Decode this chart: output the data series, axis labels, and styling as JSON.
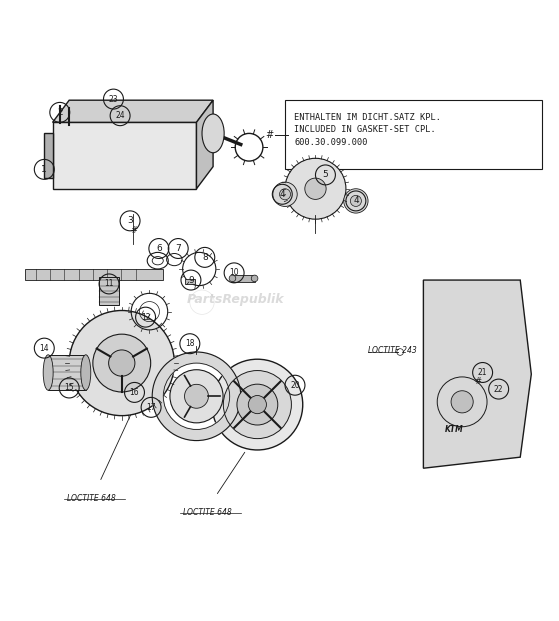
{
  "bg_color": "#ffffff",
  "line_color": "#1a1a1a",
  "fig_width": 5.59,
  "fig_height": 6.21,
  "dpi": 100,
  "box_text": "ENTHALTEN IM DICHT.SATZ KPL.\nINCLUDED IN GASKET-SET CPL.\n600.30.099.000",
  "loctite_648_1": "LOCTITE 648",
  "loctite_648_2": "LOCTITE 648",
  "loctite_243": "LOCTITE 243",
  "watermark": "PartsRepublik"
}
